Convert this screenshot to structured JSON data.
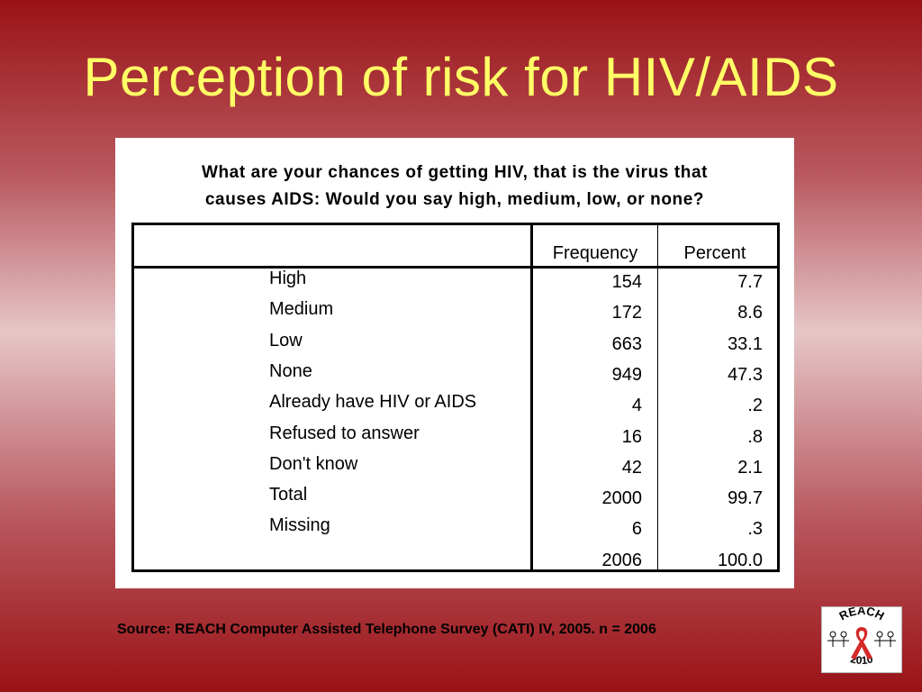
{
  "title": "Perception of risk for HIV/AIDS",
  "question": {
    "line1": "What are your chances of getting HIV, that is the virus that",
    "line2": "causes AIDS: Would you say high, medium, low, or none?"
  },
  "table": {
    "headers": {
      "frequency": "Frequency",
      "percent": "Percent"
    },
    "rows": [
      {
        "label": "High",
        "frequency": "154",
        "percent": "7.7"
      },
      {
        "label": "Medium",
        "frequency": "172",
        "percent": "8.6"
      },
      {
        "label": "Low",
        "frequency": "663",
        "percent": "33.1"
      },
      {
        "label": "None",
        "frequency": "949",
        "percent": "47.3"
      },
      {
        "label": "Already have HIV or AIDS",
        "frequency": "4",
        "percent": ".2"
      },
      {
        "label": "Refused to answer",
        "frequency": "16",
        "percent": ".8"
      },
      {
        "label": "Don't know",
        "frequency": "42",
        "percent": "2.1"
      },
      {
        "label": "Total",
        "frequency": "2000",
        "percent": "99.7"
      },
      {
        "label": "Missing",
        "frequency": "6",
        "percent": ".3"
      },
      {
        "label": "",
        "frequency": "2006",
        "percent": "100.0"
      }
    ]
  },
  "source": "Source: REACH Computer Assisted Telephone Survey (CATI) IV, 2005. n = 2006",
  "logo": {
    "top_text": "REACH",
    "bottom_text": "2010",
    "ribbon_color": "#d42a2a"
  }
}
